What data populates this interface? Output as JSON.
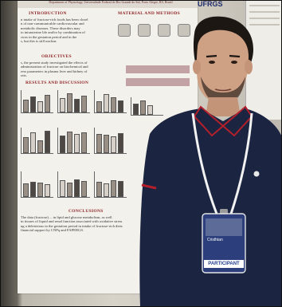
{
  "poster": {
    "header": "Department of Physiology, Universidade Federal do Rio Grande do Sul, Porto Alegre, RS, Brazil",
    "logo": "UFRGS",
    "sections": {
      "introduction": "INTRODUCTION",
      "objectives": "OBJECTIVES",
      "results": "RESULTS AND DISCUSSION",
      "methods": "MATERIAL AND METHODS",
      "conclusions": "CONCLUSIONS"
    },
    "intro_lines": [
      "n intake of fructose-rich foods has been closel",
      "n of non-communicable cardiovascular and",
      "metabolic diseases. These disorders may",
      "to intrauterine life and/or by combination of",
      "ctors in the gestation period and in the",
      "s, but this is still unclear."
    ],
    "objective_lines": [
      "s, the present study investigated the effects of",
      "administration of fructose on biochemical and",
      "ress parameters in plasma liver and kidney of",
      "rats."
    ],
    "conclusion_lines": [
      "The data (fructose) ... in lipid and glucose metabolism, as well",
      "in tissues of liquid and renal function associated with oxidative stress",
      "ng a deleterious in the gestation period in intake of fructose-rich diets",
      "financial support by CNPq and FAPERGS."
    ]
  },
  "badge": {
    "name": "Cristhian",
    "role": "PARTICIPANT"
  },
  "colors": {
    "shirt": "#1b2440",
    "collar_stripe": "#b3202c",
    "lanyard": "#f2f2f2",
    "badge_blue": "#1f3c8c"
  }
}
